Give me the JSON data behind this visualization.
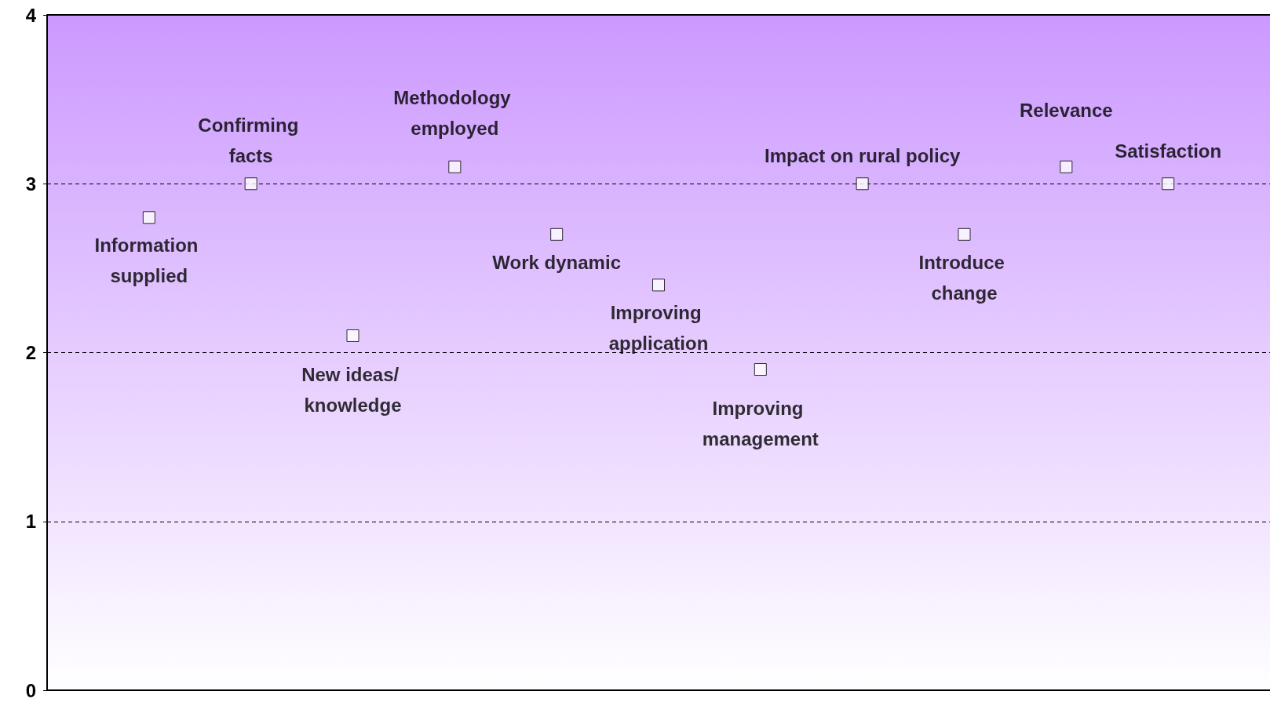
{
  "chart_data": {
    "type": "scatter",
    "categories": [
      "Information supplied",
      "Confirming facts",
      "New ideas/ knowledge",
      "Methodology employed",
      "Work dynamic",
      "Improving application",
      "Improving management",
      "Impact on rural policy",
      "Introduce change",
      "Relevance",
      "Satisfaction"
    ],
    "values": [
      2.8,
      3.0,
      2.1,
      3.1,
      2.7,
      2.4,
      1.9,
      3.0,
      2.7,
      3.1,
      3.0
    ],
    "color": "#ffffff",
    "marker": "square",
    "ylim": [
      0,
      4
    ],
    "yticks": [
      0,
      1,
      2,
      3,
      4
    ],
    "grid": "y",
    "tick_labels": "y"
  }
}
